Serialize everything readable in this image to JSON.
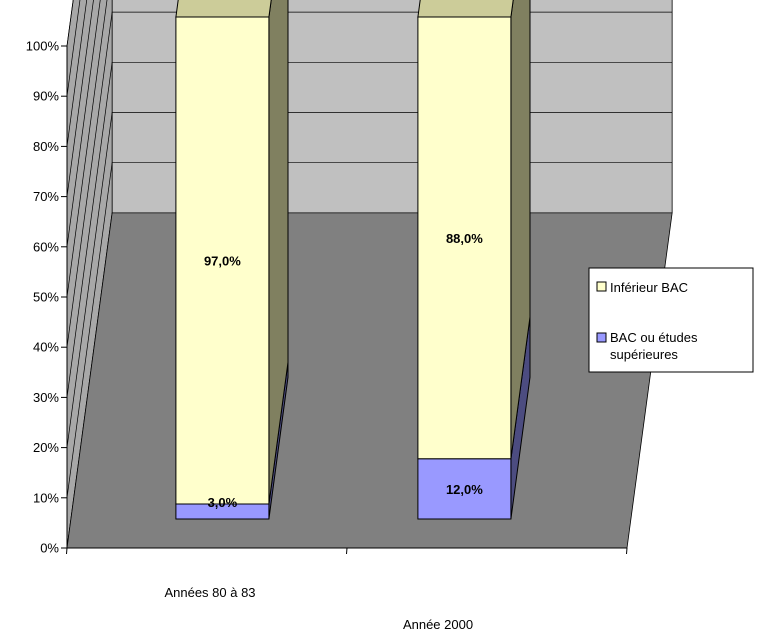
{
  "chart_data": {
    "type": "bar",
    "stacked": true,
    "three_d": true,
    "categories": [
      "Années 80 à 83",
      "Année 2000"
    ],
    "series": [
      {
        "name": "BAC ou études supérieures",
        "values": [
          3.0,
          12.0
        ],
        "labels": [
          "3,0%",
          "12,0%"
        ],
        "color": "#9999ff"
      },
      {
        "name": "Inférieur BAC",
        "values": [
          97.0,
          88.0
        ],
        "labels": [
          "97,0%",
          "88,0%"
        ],
        "color": "#ffffcc"
      }
    ],
    "ylim": [
      0,
      100
    ],
    "yticks": [
      "0%",
      "10%",
      "20%",
      "30%",
      "40%",
      "50%",
      "60%",
      "70%",
      "80%",
      "90%",
      "100%"
    ],
    "grid": true,
    "legend_position": "right",
    "colors": {
      "back_wall": "#c0c0c0",
      "side_wall": "#a8a8a8",
      "floor": "#808080",
      "bar_side_dark": "#808060",
      "bar_top": "#cccc99",
      "blue_side": "#4c4c80",
      "grid": "#000000"
    }
  }
}
